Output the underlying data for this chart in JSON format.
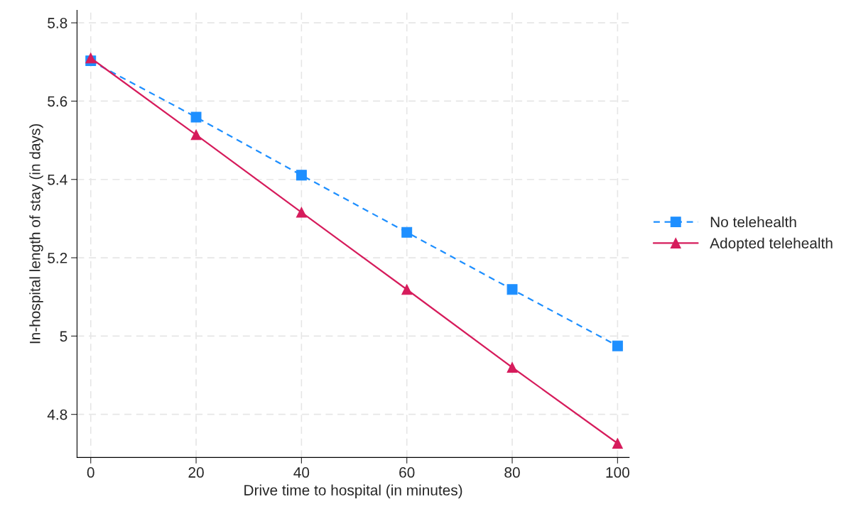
{
  "chart_data": {
    "type": "line",
    "xlabel": "Drive time to hospital (in minutes)",
    "ylabel": "In-hospital length of stay (in days)",
    "x": [
      0,
      20,
      40,
      60,
      80,
      100
    ],
    "series": [
      {
        "name": "No telehealth",
        "color": "#1e8fff",
        "marker": "square",
        "line_style": "dashed",
        "values": [
          5.703,
          5.559,
          5.411,
          5.265,
          5.119,
          4.975
        ]
      },
      {
        "name": "Adopted telehealth",
        "color": "#d61c5c",
        "marker": "triangle",
        "line_style": "solid",
        "values": [
          5.71,
          5.514,
          5.316,
          5.119,
          4.92,
          4.726
        ]
      }
    ],
    "xlim": [
      -2.6,
      102.2
    ],
    "xticks": [
      0,
      20,
      40,
      60,
      80,
      100
    ],
    "ylim": [
      4.69,
      5.832
    ],
    "yticks": [
      {
        "value": 4.8,
        "label": "4.8"
      },
      {
        "value": 5,
        "label": "5"
      },
      {
        "value": 5.2,
        "label": "5.2"
      },
      {
        "value": 5.4,
        "label": "5.4"
      },
      {
        "value": 5.6,
        "label": "5.6"
      },
      {
        "value": 5.8,
        "label": "5.8"
      }
    ],
    "grid": true,
    "legend": "right"
  }
}
